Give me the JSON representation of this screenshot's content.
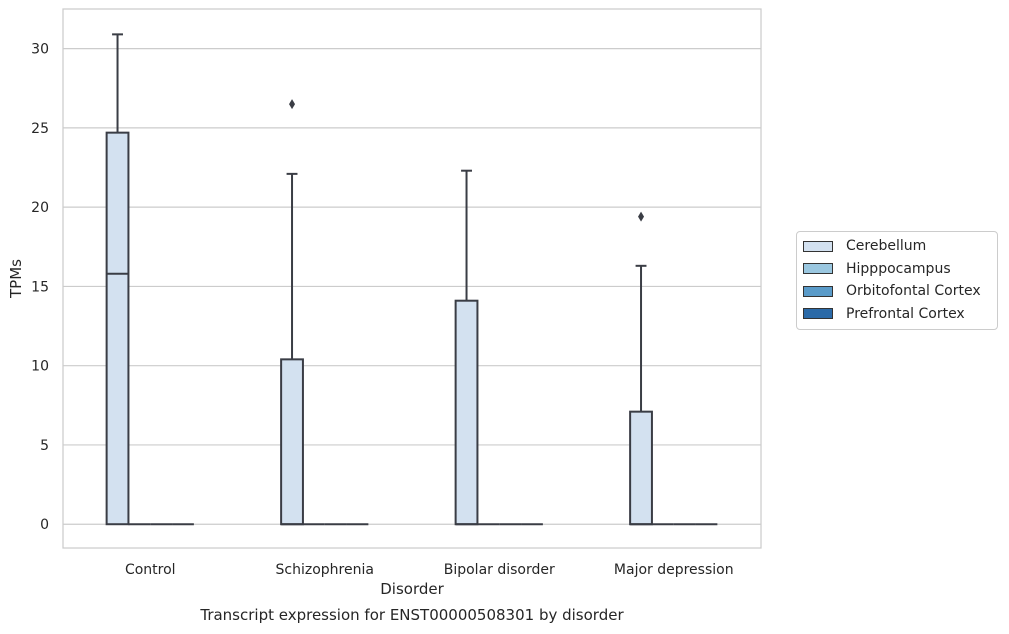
{
  "chart_data": {
    "type": "box",
    "title": "",
    "xlabel": "Disorder",
    "ylabel": "TPMs",
    "ylim": [
      -1.5,
      32.5
    ],
    "yticks": [
      0,
      5,
      10,
      15,
      20,
      25,
      30
    ],
    "grid": true,
    "legend_position": "right",
    "categories": [
      "Control",
      "Schizophrenia",
      "Bipolar disorder",
      "Major depression"
    ],
    "series": [
      {
        "name": "Cerebellum",
        "color": "#d3e1f0",
        "boxes": [
          {
            "whisker_low": 0,
            "q1": 0,
            "median": 15.8,
            "q3": 24.7,
            "whisker_high": 30.9,
            "outliers": []
          },
          {
            "whisker_low": 0,
            "q1": 0,
            "median": 0,
            "q3": 10.4,
            "whisker_high": 22.1,
            "outliers": [
              26.5
            ]
          },
          {
            "whisker_low": 0,
            "q1": 0,
            "median": 0,
            "q3": 14.1,
            "whisker_high": 22.3,
            "outliers": []
          },
          {
            "whisker_low": 0,
            "q1": 0,
            "median": 0,
            "q3": 7.1,
            "whisker_high": 16.3,
            "outliers": [
              19.4
            ]
          }
        ]
      },
      {
        "name": "Hipppocampus",
        "color": "#9ac7e0",
        "boxes": [
          {
            "whisker_low": 0,
            "q1": 0,
            "median": 0,
            "q3": 0,
            "whisker_high": 0,
            "outliers": []
          },
          {
            "whisker_low": 0,
            "q1": 0,
            "median": 0,
            "q3": 0,
            "whisker_high": 0,
            "outliers": []
          },
          {
            "whisker_low": 0,
            "q1": 0,
            "median": 0,
            "q3": 0,
            "whisker_high": 0,
            "outliers": []
          },
          {
            "whisker_low": 0,
            "q1": 0,
            "median": 0,
            "q3": 0,
            "whisker_high": 0,
            "outliers": []
          }
        ]
      },
      {
        "name": "Orbitofontal Cortex",
        "color": "#5a9bc9",
        "boxes": [
          {
            "whisker_low": 0,
            "q1": 0,
            "median": 0,
            "q3": 0,
            "whisker_high": 0,
            "outliers": []
          },
          {
            "whisker_low": 0,
            "q1": 0,
            "median": 0,
            "q3": 0,
            "whisker_high": 0,
            "outliers": []
          },
          {
            "whisker_low": 0,
            "q1": 0,
            "median": 0,
            "q3": 0,
            "whisker_high": 0,
            "outliers": []
          },
          {
            "whisker_low": 0,
            "q1": 0,
            "median": 0,
            "q3": 0,
            "whisker_high": 0,
            "outliers": []
          }
        ]
      },
      {
        "name": "Prefrontal Cortex",
        "color": "#2b6aa8",
        "boxes": [
          {
            "whisker_low": 0,
            "q1": 0,
            "median": 0,
            "q3": 0,
            "whisker_high": 0,
            "outliers": []
          },
          {
            "whisker_low": 0,
            "q1": 0,
            "median": 0,
            "q3": 0,
            "whisker_high": 0,
            "outliers": []
          },
          {
            "whisker_low": 0,
            "q1": 0,
            "median": 0,
            "q3": 0,
            "whisker_high": 0,
            "outliers": []
          },
          {
            "whisker_low": 0,
            "q1": 0,
            "median": 0,
            "q3": 0,
            "whisker_high": 0,
            "outliers": []
          }
        ]
      }
    ],
    "caption": "Transcript expression for ENST00000508301 by disorder"
  }
}
